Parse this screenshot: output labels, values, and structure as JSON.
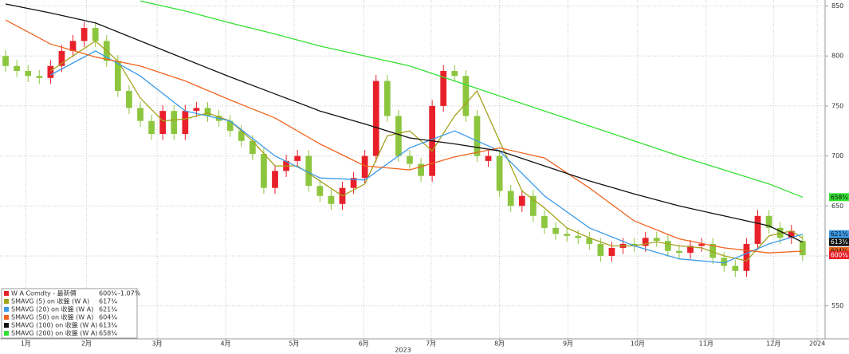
{
  "chart_data": {
    "type": "candlestick",
    "up_color": "#e8202a",
    "down_color": "#8cc63e",
    "candles": {
      "open": [
        800,
        790,
        785,
        780,
        778,
        790,
        805,
        815,
        828,
        815,
        795,
        765,
        748,
        735,
        722,
        745,
        722,
        745,
        748,
        740,
        735,
        725,
        715,
        702,
        668,
        685,
        695,
        700,
        670,
        660,
        652,
        668,
        678,
        700,
        775,
        740,
        700,
        692,
        680,
        750,
        785,
        780,
        740,
        695,
        700,
        665,
        650,
        660,
        640,
        628,
        622,
        620,
        618,
        612,
        600,
        608,
        612,
        610,
        618,
        615,
        605,
        603,
        610,
        612,
        598,
        590,
        585,
        612,
        640,
        628,
        618,
        615
      ],
      "high": [
        806,
        796,
        791,
        786,
        796,
        811,
        821,
        834,
        834,
        821,
        801,
        771,
        754,
        741,
        751,
        751,
        751,
        754,
        754,
        746,
        741,
        731,
        721,
        708,
        691,
        701,
        706,
        706,
        676,
        666,
        674,
        684,
        706,
        781,
        781,
        746,
        706,
        698,
        756,
        791,
        791,
        786,
        746,
        706,
        706,
        671,
        666,
        666,
        646,
        634,
        628,
        626,
        624,
        618,
        614,
        618,
        618,
        624,
        624,
        621,
        611,
        616,
        618,
        618,
        604,
        596,
        618,
        646,
        646,
        634,
        631,
        621
      ],
      "low": [
        784,
        779,
        774,
        772,
        772,
        784,
        799,
        809,
        809,
        789,
        759,
        742,
        729,
        716,
        716,
        716,
        716,
        739,
        734,
        729,
        719,
        709,
        696,
        662,
        662,
        679,
        689,
        664,
        654,
        646,
        646,
        662,
        672,
        694,
        734,
        694,
        686,
        674,
        674,
        744,
        774,
        734,
        694,
        689,
        659,
        644,
        644,
        634,
        622,
        616,
        614,
        612,
        606,
        594,
        594,
        602,
        604,
        604,
        609,
        599,
        597,
        597,
        604,
        592,
        584,
        579,
        579,
        606,
        622,
        612,
        612,
        595
      ],
      "close": [
        790,
        785,
        780,
        778,
        790,
        805,
        815,
        828,
        815,
        795,
        765,
        748,
        735,
        722,
        745,
        722,
        745,
        748,
        740,
        735,
        725,
        715,
        702,
        668,
        685,
        695,
        700,
        670,
        660,
        652,
        668,
        678,
        700,
        775,
        740,
        700,
        692,
        680,
        750,
        785,
        780,
        740,
        700,
        700,
        665,
        650,
        660,
        640,
        628,
        622,
        620,
        618,
        612,
        600,
        608,
        612,
        610,
        618,
        615,
        605,
        603,
        610,
        612,
        598,
        590,
        585,
        612,
        640,
        628,
        618,
        625,
        600.75
      ]
    },
    "legend": {
      "title": "W A Comdty - 最新價",
      "last_label": "600¾",
      "change": "-1.07%",
      "position": "lower left"
    },
    "series": [
      {
        "name": "SMAVG (5) on 收盤 (W A)",
        "color": "#a3a21e",
        "last_label": "617¾",
        "x": [
          4,
          6,
          8,
          10,
          12,
          14,
          16,
          18,
          20,
          22,
          24,
          26,
          28,
          30,
          32,
          34,
          36,
          38,
          40,
          42,
          44,
          46,
          48,
          50,
          52,
          54,
          56,
          58,
          60,
          62,
          64,
          66,
          68,
          70,
          71
        ],
        "values": [
          785,
          800,
          815,
          795,
          758,
          735,
          737,
          743,
          735,
          715,
          690,
          690,
          675,
          660,
          672,
          720,
          725,
          705,
          740,
          765,
          715,
          665,
          648,
          628,
          618,
          610,
          610,
          614,
          610,
          608,
          600,
          595,
          620,
          625,
          617.75
        ]
      },
      {
        "name": "SMAVG (20) on 收盤 (W A)",
        "color": "#3d9be9",
        "last_label": "621¾",
        "x": [
          4,
          8,
          12,
          16,
          20,
          24,
          28,
          32,
          36,
          40,
          44,
          48,
          52,
          56,
          60,
          64,
          68,
          71
        ],
        "values": [
          781,
          805,
          780,
          745,
          735,
          700,
          678,
          676,
          708,
          725,
          705,
          660,
          628,
          610,
          597,
          593,
          612,
          621.75
        ]
      },
      {
        "name": "SMAVG (50) on 收盤 (W A)",
        "color": "#f0641e",
        "last_label": "604¾",
        "x": [
          0,
          4,
          8,
          12,
          16,
          20,
          24,
          28,
          32,
          36,
          40,
          44,
          48,
          52,
          56,
          60,
          64,
          68,
          71
        ],
        "values": [
          836,
          812,
          799,
          790,
          775,
          756,
          738,
          712,
          690,
          686,
          699,
          708,
          698,
          668,
          635,
          617,
          608,
          603,
          604.75
        ]
      },
      {
        "name": "SMAVG (100) on 收盤 (W A)",
        "color": "#111111",
        "last_label": "613¾",
        "x": [
          0,
          4,
          8,
          12,
          16,
          20,
          24,
          28,
          32,
          36,
          40,
          44,
          48,
          52,
          56,
          60,
          64,
          68,
          71
        ],
        "values": [
          852,
          843,
          833,
          815,
          797,
          779,
          762,
          745,
          732,
          718,
          712,
          705,
          690,
          675,
          662,
          650,
          640,
          630,
          613.75
        ]
      },
      {
        "name": "SMAVG (200) on 收盤 (W A)",
        "color": "#33e033",
        "last_label": "658¾",
        "x": [
          12,
          16,
          20,
          24,
          28,
          32,
          36,
          40,
          44,
          48,
          52,
          56,
          60,
          64,
          68,
          71
        ],
        "values": [
          855,
          845,
          833,
          822,
          810,
          800,
          790,
          775,
          760,
          745,
          730,
          715,
          700,
          686,
          672,
          658.75
        ]
      }
    ],
    "xlim": [
      -0.5,
      73
    ],
    "ylim": [
      517,
      856
    ],
    "yticks": [
      550,
      600,
      650,
      700,
      750,
      800,
      850
    ],
    "xticks": [
      {
        "value": 1.8,
        "label": "1月"
      },
      {
        "value": 7.2,
        "label": "2月"
      },
      {
        "value": 13.5,
        "label": "3月"
      },
      {
        "value": 19.6,
        "label": "4月"
      },
      {
        "value": 25.7,
        "label": "5月"
      },
      {
        "value": 31.9,
        "label": "6月"
      },
      {
        "value": 37.9,
        "label": "7月"
      },
      {
        "value": 44.0,
        "label": "8月"
      },
      {
        "value": 50.1,
        "label": "9月"
      },
      {
        "value": 56.3,
        "label": "10月"
      },
      {
        "value": 62.4,
        "label": "11月"
      },
      {
        "value": 68.4,
        "label": "12月"
      },
      {
        "value": 72.3,
        "label": "2024"
      }
    ],
    "year_labels": [
      {
        "value": 35.4,
        "label": "2023"
      }
    ],
    "grid": true
  }
}
